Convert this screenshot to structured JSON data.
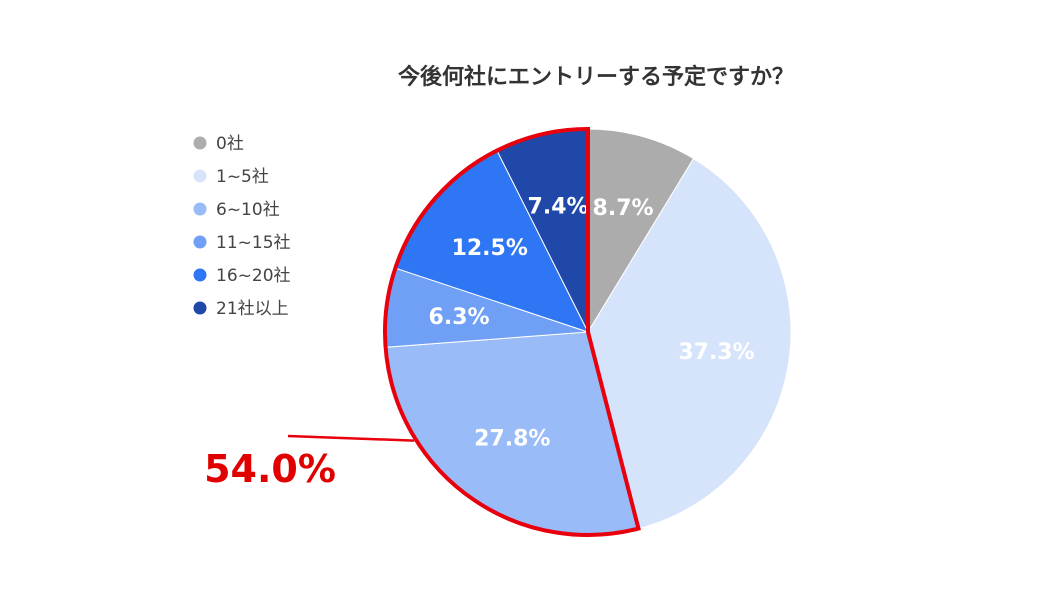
{
  "chart_data": {
    "type": "pie",
    "title": "今後何社にエントリーする予定ですか？",
    "legend_position": "left",
    "slices": [
      {
        "label": "0社",
        "value": 8.7,
        "display": "8.7%",
        "color": "#acacac"
      },
      {
        "label": "1~5社",
        "value": 37.3,
        "display": "37.3%",
        "color": "#d5e3fb"
      },
      {
        "label": "6~10社",
        "value": 27.8,
        "display": "27.8%",
        "color": "#99bbf7"
      },
      {
        "label": "11~15社",
        "value": 6.3,
        "display": "6.3%",
        "color": "#6fa0f5"
      },
      {
        "label": "16~20社",
        "value": 12.5,
        "display": "12.5%",
        "color": "#2e76f3"
      },
      {
        "label": "21社以上",
        "value": 7.4,
        "display": "7.4%",
        "color": "#1f48a9"
      }
    ],
    "highlight": {
      "slices": [
        "6~10社",
        "11~15社",
        "16~20社",
        "21社以上"
      ],
      "label": "54.0%",
      "color": "#e8000c"
    }
  }
}
